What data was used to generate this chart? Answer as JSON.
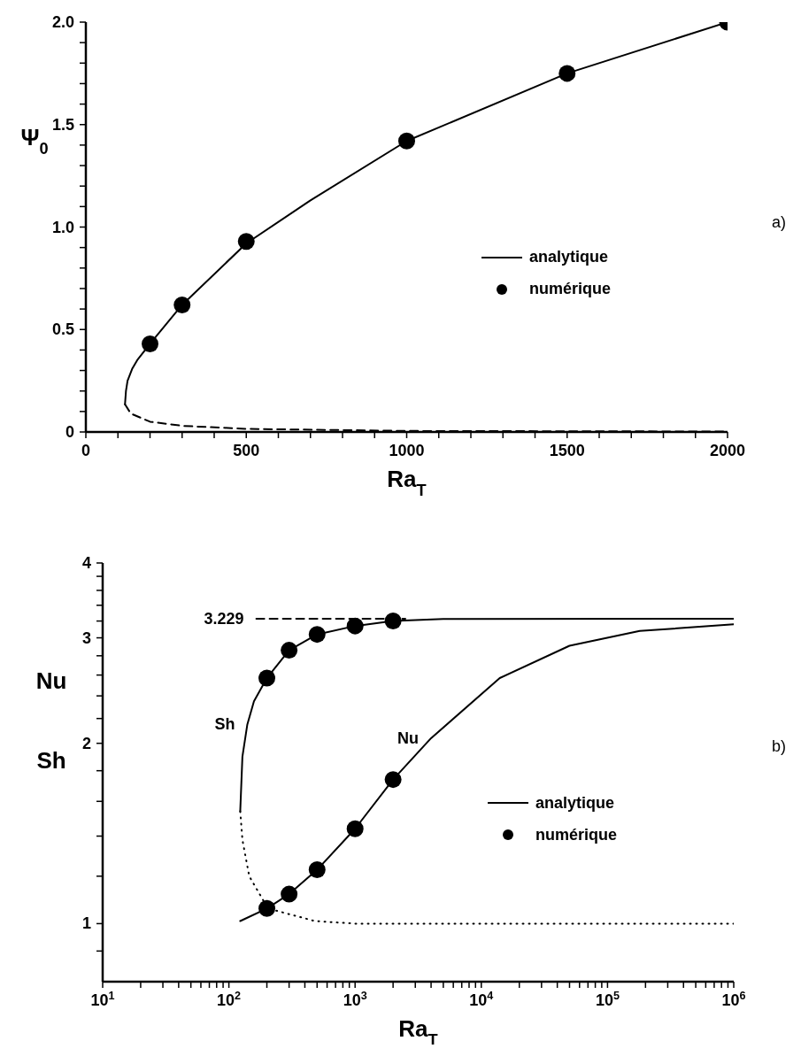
{
  "chart_data": [
    {
      "type": "line",
      "xlabel": "Ra$_{T}$",
      "ylabel": "Ψ$_{0}$",
      "annotations": [
        "a)"
      ],
      "legend": "right",
      "xlim": [
        0,
        2000
      ],
      "xticks": [
        0,
        {
          "value": 100,
          "label": null
        },
        {
          "value": 200,
          "label": null
        },
        {
          "value": 300,
          "label": null
        },
        {
          "value": 400,
          "label": null
        },
        500,
        {
          "value": 600,
          "label": null
        },
        {
          "value": 700,
          "label": null
        },
        {
          "value": 800,
          "label": null
        },
        {
          "value": 900,
          "label": null
        },
        1000,
        {
          "value": 1100,
          "label": null
        },
        {
          "value": 1200,
          "label": null
        },
        {
          "value": 1300,
          "label": null
        },
        {
          "value": 1400,
          "label": null
        },
        1500,
        {
          "value": 1600,
          "label": null
        },
        {
          "value": 1700,
          "label": null
        },
        {
          "value": 1800,
          "label": null
        },
        {
          "value": 1900,
          "label": null
        },
        2000
      ],
      "ylim": [
        0,
        2
      ],
      "yticks": [
        0,
        {
          "value": 0.1,
          "label": null
        },
        {
          "value": 0.2,
          "label": null
        },
        {
          "value": 0.3,
          "label": null
        },
        {
          "value": 0.4,
          "label": null
        },
        0.5,
        {
          "value": 0.6,
          "label": null
        },
        {
          "value": 0.7,
          "label": null
        },
        {
          "value": 0.8,
          "label": null
        },
        {
          "value": 0.9,
          "label": null
        },
        {
          "value": 1,
          "label": "1.0"
        },
        {
          "value": 1.1,
          "label": null
        },
        {
          "value": 1.2,
          "label": null
        },
        {
          "value": 1.3,
          "label": null
        },
        {
          "value": 1.4,
          "label": null
        },
        1.5,
        {
          "value": 1.6,
          "label": null
        },
        {
          "value": 1.7,
          "label": null
        },
        {
          "value": 1.8,
          "label": null
        },
        {
          "value": 1.9,
          "label": null
        },
        {
          "value": 2,
          "label": "2.0"
        }
      ],
      "series": [
        {
          "name": "analytique",
          "color": "#000000",
          "line_style": "solid",
          "marker": "none",
          "x": [
            122,
            125,
            130,
            145,
            160,
            200,
            300,
            500,
            700,
            1000,
            1500,
            2000
          ],
          "values": [
            0.135,
            0.2,
            0.25,
            0.31,
            0.35,
            0.43,
            0.62,
            0.92,
            1.13,
            1.42,
            1.75,
            2.0
          ]
        },
        {
          "color": "#000000",
          "line_style": "dashed",
          "marker": "none",
          "x": [
            122,
            140,
            200,
            300,
            500,
            1000,
            2000
          ],
          "values": [
            0.135,
            0.09,
            0.05,
            0.03,
            0.015,
            0.005,
            0.002
          ]
        },
        {
          "name": "numérique",
          "type": "scatter",
          "color": "#000000",
          "marker": "circle",
          "x": [
            200,
            300,
            500,
            1000,
            1500,
            2000
          ],
          "values": [
            0.43,
            0.62,
            0.93,
            1.42,
            1.75,
            2.0
          ]
        }
      ]
    },
    {
      "type": "line",
      "xlabel": "Ra$_{T}$",
      "ylabel": "Nu Sh",
      "annotations": [
        "b)",
        {
          "text": "3.229",
          "x": 165,
          "y": 3.229
        },
        {
          "text": "Sh",
          "x": 140,
          "y": 2.15
        },
        {
          "text": "Nu",
          "x": 4000,
          "y": 2.04
        }
      ],
      "legend": "right",
      "log": "xy",
      "xlim": [
        10,
        1000000
      ],
      "xticks": [
        {
          "value": 10,
          "label": "10$^{1}$"
        },
        {
          "value": 20,
          "label": null
        },
        {
          "value": 30,
          "label": null
        },
        {
          "value": 40,
          "label": null
        },
        {
          "value": 50,
          "label": null
        },
        {
          "value": 60,
          "label": null
        },
        {
          "value": 70,
          "label": null
        },
        {
          "value": 80,
          "label": null
        },
        {
          "value": 90,
          "label": null
        },
        {
          "value": 100,
          "label": "10$^{2}$"
        },
        {
          "value": 200,
          "label": null
        },
        {
          "value": 300,
          "label": null
        },
        {
          "value": 400,
          "label": null
        },
        {
          "value": 500,
          "label": null
        },
        {
          "value": 600,
          "label": null
        },
        {
          "value": 700,
          "label": null
        },
        {
          "value": 800,
          "label": null
        },
        {
          "value": 900,
          "label": null
        },
        {
          "value": 1000,
          "label": "10$^{3}$"
        },
        {
          "value": 2000,
          "label": null
        },
        {
          "value": 3000,
          "label": null
        },
        {
          "value": 4000,
          "label": null
        },
        {
          "value": 5000,
          "label": null
        },
        {
          "value": 6000,
          "label": null
        },
        {
          "value": 7000,
          "label": null
        },
        {
          "value": 8000,
          "label": null
        },
        {
          "value": 9000,
          "label": null
        },
        {
          "value": 10000,
          "label": "10$^{4}$"
        },
        {
          "value": 20000,
          "label": null
        },
        {
          "value": 30000,
          "label": null
        },
        {
          "value": 40000,
          "label": null
        },
        {
          "value": 50000,
          "label": null
        },
        {
          "value": 60000,
          "label": null
        },
        {
          "value": 70000,
          "label": null
        },
        {
          "value": 80000,
          "label": null
        },
        {
          "value": 90000,
          "label": null
        },
        {
          "value": 100000,
          "label": "10$^{5}$"
        },
        {
          "value": 200000,
          "label": null
        },
        {
          "value": 300000,
          "label": null
        },
        {
          "value": 400000,
          "label": null
        },
        {
          "value": 500000,
          "label": null
        },
        {
          "value": 600000,
          "label": null
        },
        {
          "value": 700000,
          "label": null
        },
        {
          "value": 800000,
          "label": null
        },
        {
          "value": 900000,
          "label": null
        },
        {
          "value": 1000000,
          "label": "10$^{6}$"
        }
      ],
      "ylim": [
        0.8,
        4
      ],
      "yticks": [
        {
          "value": 0.9,
          "label": null
        },
        1,
        {
          "value": 1.2,
          "label": null
        },
        {
          "value": 1.4,
          "label": null
        },
        {
          "value": 1.6,
          "label": null
        },
        {
          "value": 1.8,
          "label": null
        },
        2,
        {
          "value": 2.2,
          "label": null
        },
        {
          "value": 2.4,
          "label": null
        },
        {
          "value": 2.6,
          "label": null
        },
        {
          "value": 2.8,
          "label": null
        },
        3,
        {
          "value": 3.2,
          "label": null
        },
        {
          "value": 3.4,
          "label": null
        },
        {
          "value": 3.6,
          "label": null
        },
        {
          "value": 3.8,
          "label": null
        },
        4
      ],
      "series": [
        {
          "name": "analytique",
          "color": "#000000",
          "line_style": "solid",
          "marker": "none",
          "x": [
            123,
            128,
            140,
            158,
            200,
            300,
            500,
            1000,
            2000,
            5000,
            1000000,
            null,
            123,
            200,
            300,
            500,
            1000,
            2000,
            4000,
            14000,
            50000,
            180000,
            1000000
          ],
          "values": [
            1.54,
            1.9,
            2.15,
            2.35,
            2.57,
            2.86,
            3.04,
            3.14,
            3.2,
            3.225,
            3.229,
            null,
            1.01,
            1.06,
            1.12,
            1.23,
            1.44,
            1.74,
            2.04,
            2.57,
            2.91,
            3.08,
            3.16
          ]
        },
        {
          "color": "#000000",
          "line_style": "dotted",
          "marker": "none",
          "x": [
            123,
            128,
            145,
            204,
            480,
            1000,
            1000000
          ],
          "values": [
            1.54,
            1.38,
            1.2,
            1.06,
            1.01,
            1.0,
            1.0
          ]
        },
        {
          "color": "#000000",
          "line_style": "dashed",
          "marker": "none",
          "x": [
            165,
            2500
          ],
          "values": [
            3.229,
            3.229
          ]
        },
        {
          "name": "numérique",
          "type": "scatter",
          "color": "#000000",
          "marker": "circle",
          "x": [
            200,
            300,
            500,
            1000,
            2000,
            200,
            300,
            500,
            1000,
            2000
          ],
          "values": [
            2.57,
            2.86,
            3.04,
            3.14,
            3.2,
            1.06,
            1.12,
            1.23,
            1.44,
            1.74
          ]
        }
      ]
    }
  ]
}
